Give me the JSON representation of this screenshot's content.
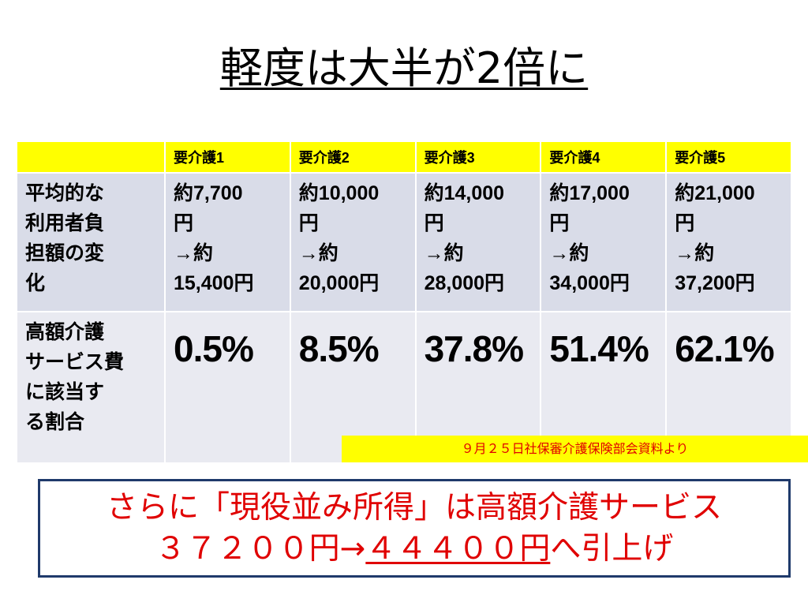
{
  "title": "軽度は大半が2倍に",
  "table": {
    "header": [
      "",
      "要介護1",
      "要介護2",
      "要介護3",
      "要介護4",
      "要介護5"
    ],
    "burden_label": [
      "平均的な",
      "利用者負",
      "担額の変",
      "化"
    ],
    "burden": [
      [
        "約7,700",
        "円",
        "→約",
        "15,400円"
      ],
      [
        "約10,000",
        "円",
        "→約",
        "20,000円"
      ],
      [
        "約14,000",
        "円",
        "→約",
        "28,000円"
      ],
      [
        "約17,000",
        "円",
        "→約",
        "34,000円"
      ],
      [
        "約21,000",
        "円",
        "→約",
        "37,200円"
      ]
    ],
    "share_label": [
      "高額介護",
      "サービス費",
      "に該当す",
      "る割合"
    ],
    "share": [
      "0.5%",
      "8.5%",
      "37.8%",
      "51.4%",
      "62.1%"
    ]
  },
  "source_note": "９月２５日社保審介護保険部会資料より",
  "callout": {
    "line1": "さらに「現役並み所得」は高額介護サービス",
    "line2_pre": "３７２００円→",
    "line2_underlined": "４４４００円",
    "line2_post": "へ引上げ"
  }
}
